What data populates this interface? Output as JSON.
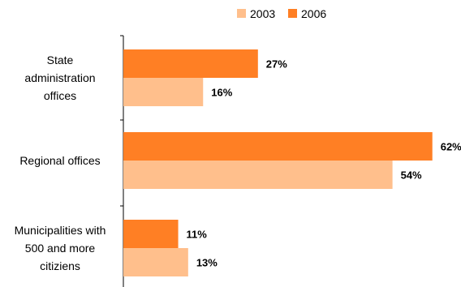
{
  "chart_data": {
    "type": "bar",
    "orientation": "horizontal",
    "categories": [
      [
        "State",
        "administration",
        "offices"
      ],
      [
        "Regional offices"
      ],
      [
        "Municipalities with",
        "500 and more",
        "citiziens"
      ]
    ],
    "series": [
      {
        "name": "2006",
        "values": [
          27,
          62,
          11
        ],
        "labels": [
          "27%",
          "62%",
          "11%"
        ],
        "color": "#FF7F24"
      },
      {
        "name": "2003",
        "values": [
          16,
          54,
          13
        ],
        "labels": [
          "16%",
          "54%",
          "13%"
        ],
        "color": "#FFBF8C"
      }
    ],
    "legend": {
      "position": "top-right",
      "entries": [
        {
          "name": "2003",
          "color": "#FFBF8C"
        },
        {
          "name": "2006",
          "color": "#FF7F24"
        }
      ]
    },
    "xlim": [
      0,
      64
    ],
    "grid": false,
    "title": "",
    "xlabel": "",
    "ylabel": ""
  }
}
